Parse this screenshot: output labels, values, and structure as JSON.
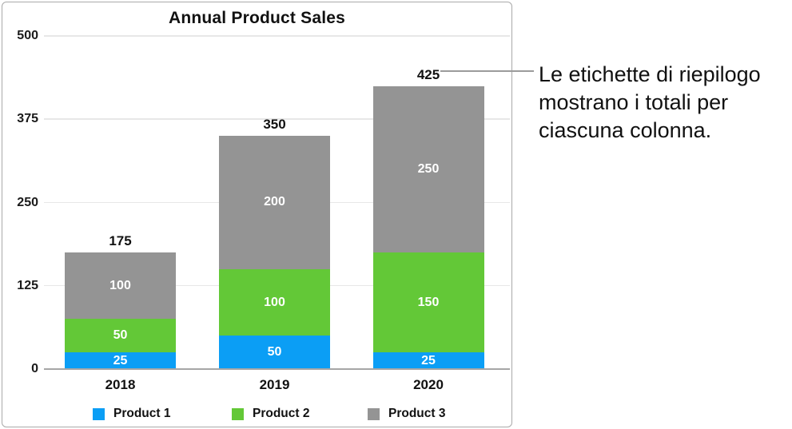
{
  "chart_data": {
    "type": "bar",
    "variant": "stacked",
    "title": "Annual Product Sales",
    "categories": [
      "2018",
      "2019",
      "2020"
    ],
    "series": [
      {
        "name": "Product 1",
        "color": "#0b9ef5",
        "values": [
          25,
          50,
          25
        ]
      },
      {
        "name": "Product 2",
        "color": "#63c837",
        "values": [
          50,
          100,
          150
        ]
      },
      {
        "name": "Product 3",
        "color": "#949494",
        "values": [
          100,
          200,
          250
        ]
      }
    ],
    "totals": [
      175,
      350,
      425
    ],
    "y_ticks": [
      0,
      125,
      250,
      375,
      500
    ],
    "ylim": [
      0,
      500
    ],
    "grid": true,
    "legend_position": "bottom"
  },
  "annotation": {
    "text": "Le etichette di riepilogo mostrano i totali per ciascuna colonna.",
    "lines": [
      "Le etichette di riepilogo",
      "mostrano i totali per",
      "ciascuna colonna."
    ]
  }
}
